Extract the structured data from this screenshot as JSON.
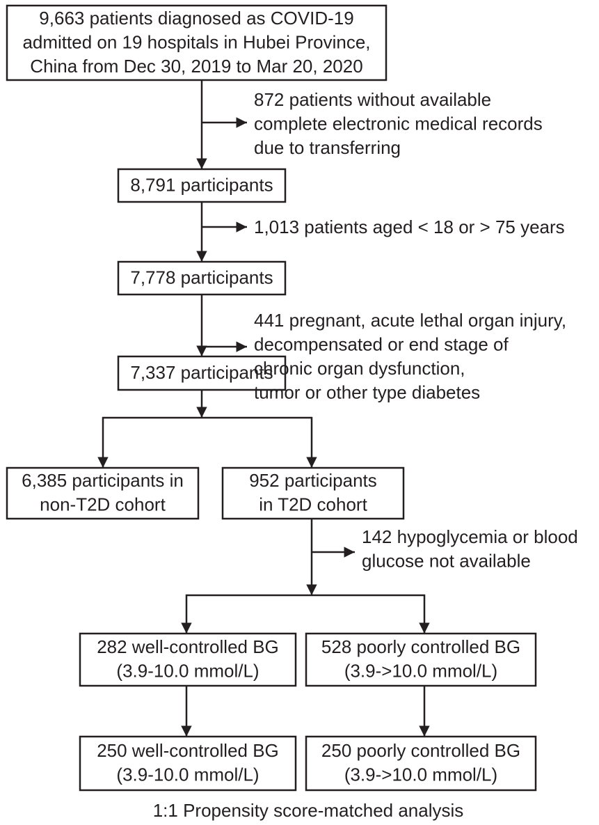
{
  "nodes": [
    {
      "lines": [
        "9,663 patients diagnosed as COVID-19",
        "admitted on 19 hospitals in Hubei Province,",
        "China from Dec 30, 2019 to Mar 20, 2020"
      ]
    },
    {
      "lines": [
        "8,791 participants"
      ]
    },
    {
      "lines": [
        "7,778 participants"
      ]
    },
    {
      "lines": [
        "7,337 participants"
      ]
    },
    {
      "lines": [
        "6,385 participants in",
        "non-T2D cohort"
      ]
    },
    {
      "lines": [
        "952 participants",
        "in T2D cohort"
      ]
    },
    {
      "lines": [
        "282 well-controlled BG",
        "(3.9-10.0 mmol/L)"
      ]
    },
    {
      "lines": [
        "528 poorly controlled BG",
        "(3.9->10.0 mmol/L)"
      ]
    },
    {
      "lines": [
        "250 well-controlled BG",
        "(3.9-10.0 mmol/L)"
      ]
    },
    {
      "lines": [
        "250 poorly controlled BG",
        "(3.9->10.0 mmol/L)"
      ]
    }
  ],
  "exclusions": [
    {
      "lines": [
        "872 patients without available",
        "complete electronic medical records",
        "due to transferring"
      ]
    },
    {
      "lines": [
        "1,013 patients aged < 18 or > 75 years"
      ]
    },
    {
      "lines": [
        "441 pregnant, acute lethal organ injury,",
        "decompensated or end stage of",
        "chronic organ dysfunction,",
        "tumor or other type diabetes"
      ]
    },
    {
      "lines": [
        "142 hypoglycemia or blood",
        "glucose not available"
      ]
    }
  ],
  "footer": "1:1 Propensity score-matched analysis"
}
